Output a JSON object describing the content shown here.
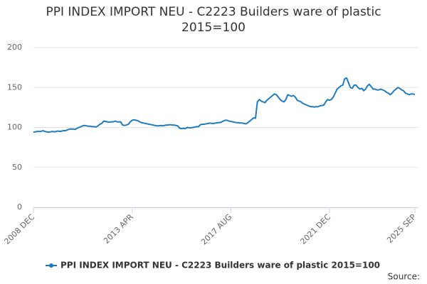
{
  "chart_data": {
    "type": "line",
    "title": "PPI INDEX IMPORT NEU - C2223 Builders ware of plastic 2015=100",
    "categories": [
      "2008 DEC",
      null,
      null,
      null,
      null,
      null,
      null,
      null,
      null,
      null,
      null,
      null,
      null,
      null,
      null,
      null,
      null,
      null,
      null,
      null,
      null,
      null,
      null,
      null,
      null,
      null,
      null,
      null,
      null,
      null,
      null,
      null,
      null,
      null,
      null,
      null,
      null,
      null,
      null,
      null,
      null,
      null,
      null,
      null,
      null,
      null,
      null,
      null,
      null,
      null,
      null,
      null,
      "2013 APR",
      null,
      null,
      null,
      null,
      null,
      null,
      null,
      null,
      null,
      null,
      null,
      null,
      null,
      null,
      null,
      null,
      null,
      null,
      null,
      null,
      null,
      null,
      null,
      null,
      null,
      null,
      null,
      null,
      null,
      null,
      null,
      null,
      null,
      null,
      null,
      null,
      null,
      null,
      null,
      null,
      null,
      null,
      null,
      null,
      null,
      null,
      null,
      null,
      null,
      null,
      null,
      "2017 AUG",
      null,
      null,
      null,
      null,
      null,
      null,
      null,
      null,
      null,
      null,
      null,
      null,
      null,
      null,
      null,
      null,
      null,
      null,
      null,
      null,
      null,
      null,
      null,
      null,
      null,
      null,
      null,
      null,
      null,
      null,
      null,
      null,
      null,
      null,
      null,
      null,
      null,
      null,
      null,
      null,
      null,
      null,
      null,
      null,
      null,
      null,
      null,
      null,
      null,
      null,
      null,
      "2021 DEC",
      null,
      null,
      null,
      null,
      null,
      null,
      null,
      null,
      null,
      null,
      null,
      null,
      null,
      null,
      null,
      null,
      null,
      null,
      null,
      null,
      null,
      null,
      null,
      null,
      null,
      null,
      null,
      null,
      null,
      null,
      null,
      null,
      null,
      null,
      null,
      null,
      null,
      null,
      null,
      null,
      null,
      null,
      null,
      null,
      "2025 SEP"
    ],
    "series": [
      {
        "name": "PPI INDEX IMPORT NEU - C2223 Builders ware of plastic 2015=100",
        "color": "#1f7bbf",
        "values": [
          94,
          94.5,
          95,
          95,
          95,
          96,
          95,
          94.5,
          94,
          94.5,
          95,
          94.5,
          95,
          95.5,
          95,
          95.5,
          96,
          96,
          97,
          98,
          98,
          98,
          97.5,
          99,
          100,
          101,
          102,
          102.5,
          102,
          101.5,
          101.5,
          101,
          101,
          100.5,
          102,
          104,
          105,
          108,
          107.5,
          107,
          106.5,
          107,
          107,
          108,
          107,
          107,
          107,
          103,
          102.5,
          103,
          104,
          107,
          109,
          109.5,
          109,
          108.5,
          107,
          106,
          105.5,
          105,
          104.5,
          104,
          103.5,
          103,
          102.5,
          102,
          102,
          102.5,
          102,
          102.5,
          103,
          103,
          103.5,
          103,
          103,
          102.5,
          102,
          99,
          98.5,
          99,
          98.5,
          100,
          99.5,
          99.5,
          100,
          100.5,
          101,
          101,
          103.5,
          104,
          104,
          104.5,
          105,
          105.5,
          105,
          105,
          105.5,
          106,
          106,
          106.5,
          108,
          109,
          109,
          108,
          107.5,
          107,
          106.5,
          106,
          106,
          105.5,
          105.5,
          105,
          104.5,
          106,
          108,
          110,
          112,
          111.5,
          132,
          135,
          133,
          132,
          131,
          134,
          136,
          138,
          140,
          142,
          141,
          138,
          135,
          133,
          132,
          135,
          141,
          140,
          139,
          140,
          138,
          134,
          133,
          132,
          130,
          129,
          128,
          127,
          126,
          126,
          125.5,
          126,
          126,
          127,
          127.5,
          128,
          132,
          135,
          134,
          135,
          138,
          143,
          148,
          150,
          152,
          153,
          161,
          162,
          156,
          150,
          149,
          153,
          153,
          150,
          148,
          149,
          146,
          148,
          152,
          154,
          151,
          148,
          148,
          147,
          147,
          148,
          147,
          146,
          144,
          143,
          141,
          143,
          146,
          148,
          150,
          149,
          147,
          146,
          143,
          142,
          141,
          142,
          142,
          141
        ]
      }
    ],
    "ylim": [
      0,
      200
    ],
    "yticks": [
      0,
      50,
      100,
      150,
      200
    ],
    "grid": true,
    "source": "Source:"
  }
}
